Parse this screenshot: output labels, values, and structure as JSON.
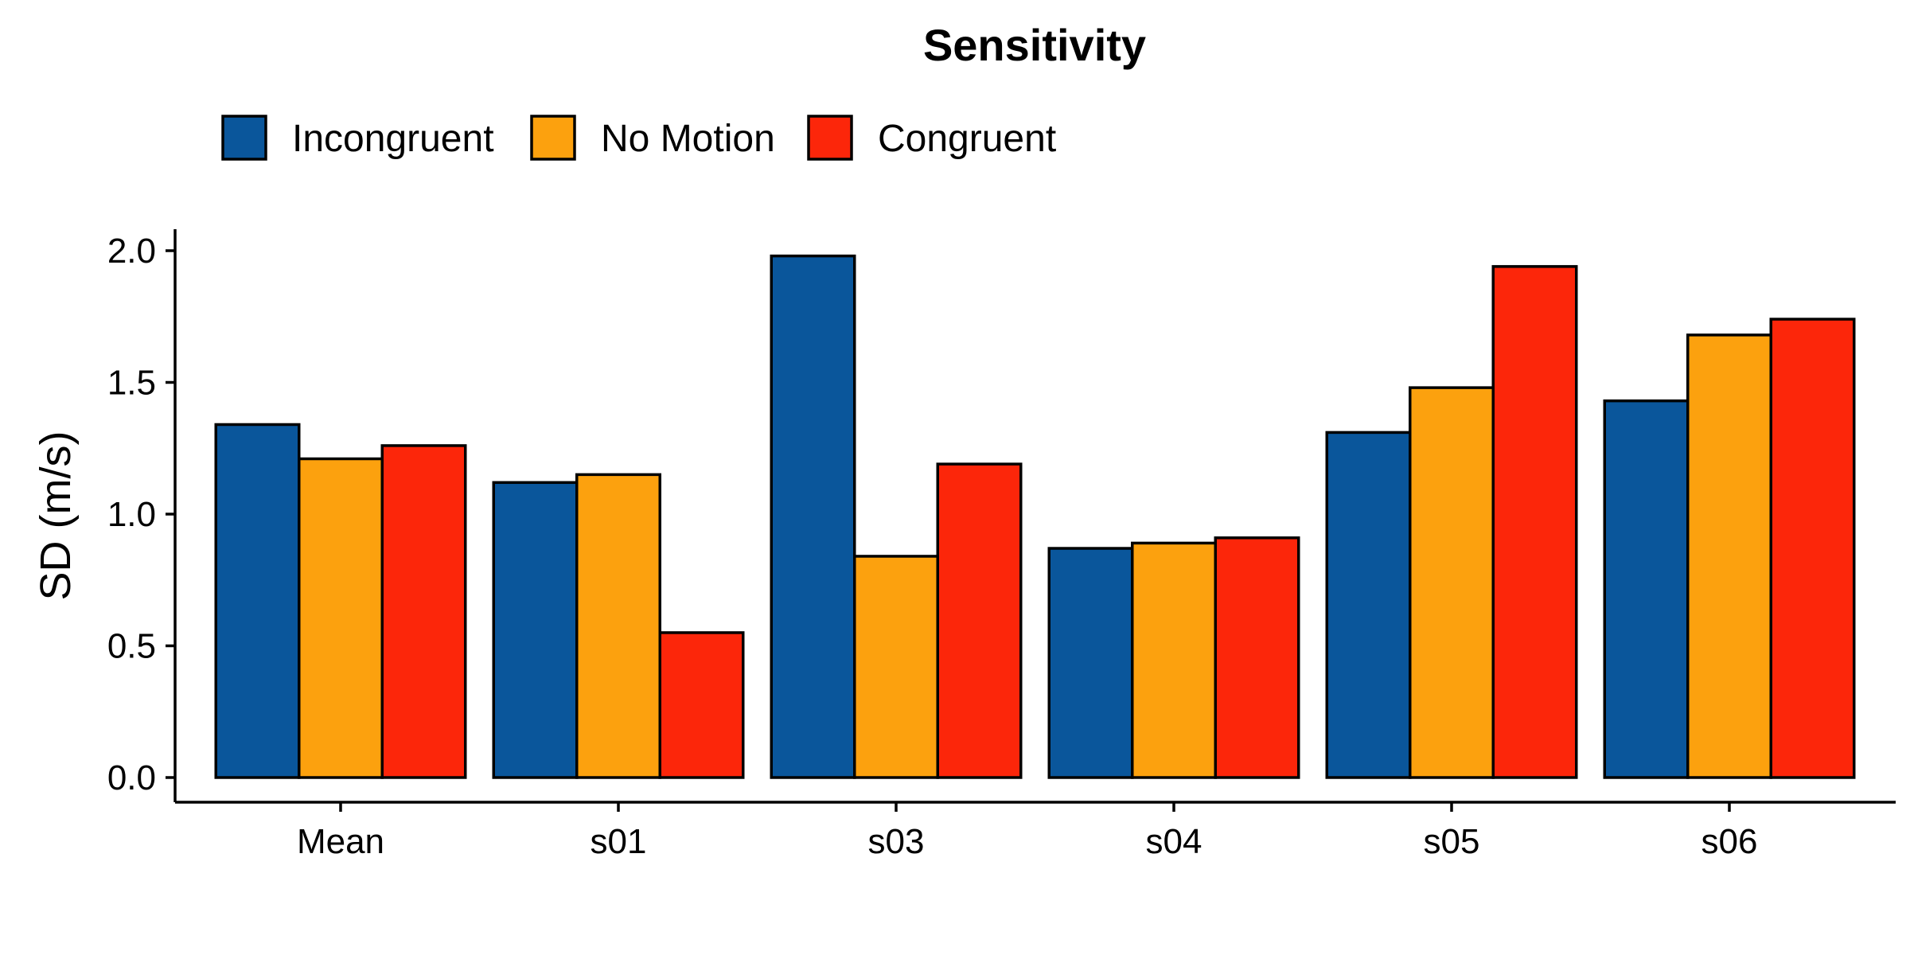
{
  "chart_data": {
    "type": "bar",
    "title": "Sensitivity",
    "xlabel": "",
    "ylabel": "SD (m/s)",
    "ylim": [
      0,
      2.08
    ],
    "yticks": [
      "0.0",
      "0.5",
      "1.0",
      "1.5",
      "2.0"
    ],
    "legend_position": "top-left",
    "grid": false,
    "categories": [
      "Mean",
      "s01",
      "s03",
      "s04",
      "s05",
      "s06"
    ],
    "series": [
      {
        "name": "Incongruent",
        "color": "#0A569B",
        "values": [
          1.34,
          1.12,
          1.98,
          0.87,
          1.31,
          1.43
        ]
      },
      {
        "name": "No Motion",
        "color": "#FCA10E",
        "values": [
          1.21,
          1.15,
          0.84,
          0.89,
          1.48,
          1.68
        ]
      },
      {
        "name": "Congruent",
        "color": "#FC260A",
        "values": [
          1.26,
          0.55,
          1.19,
          0.91,
          1.94,
          1.74
        ]
      }
    ]
  }
}
